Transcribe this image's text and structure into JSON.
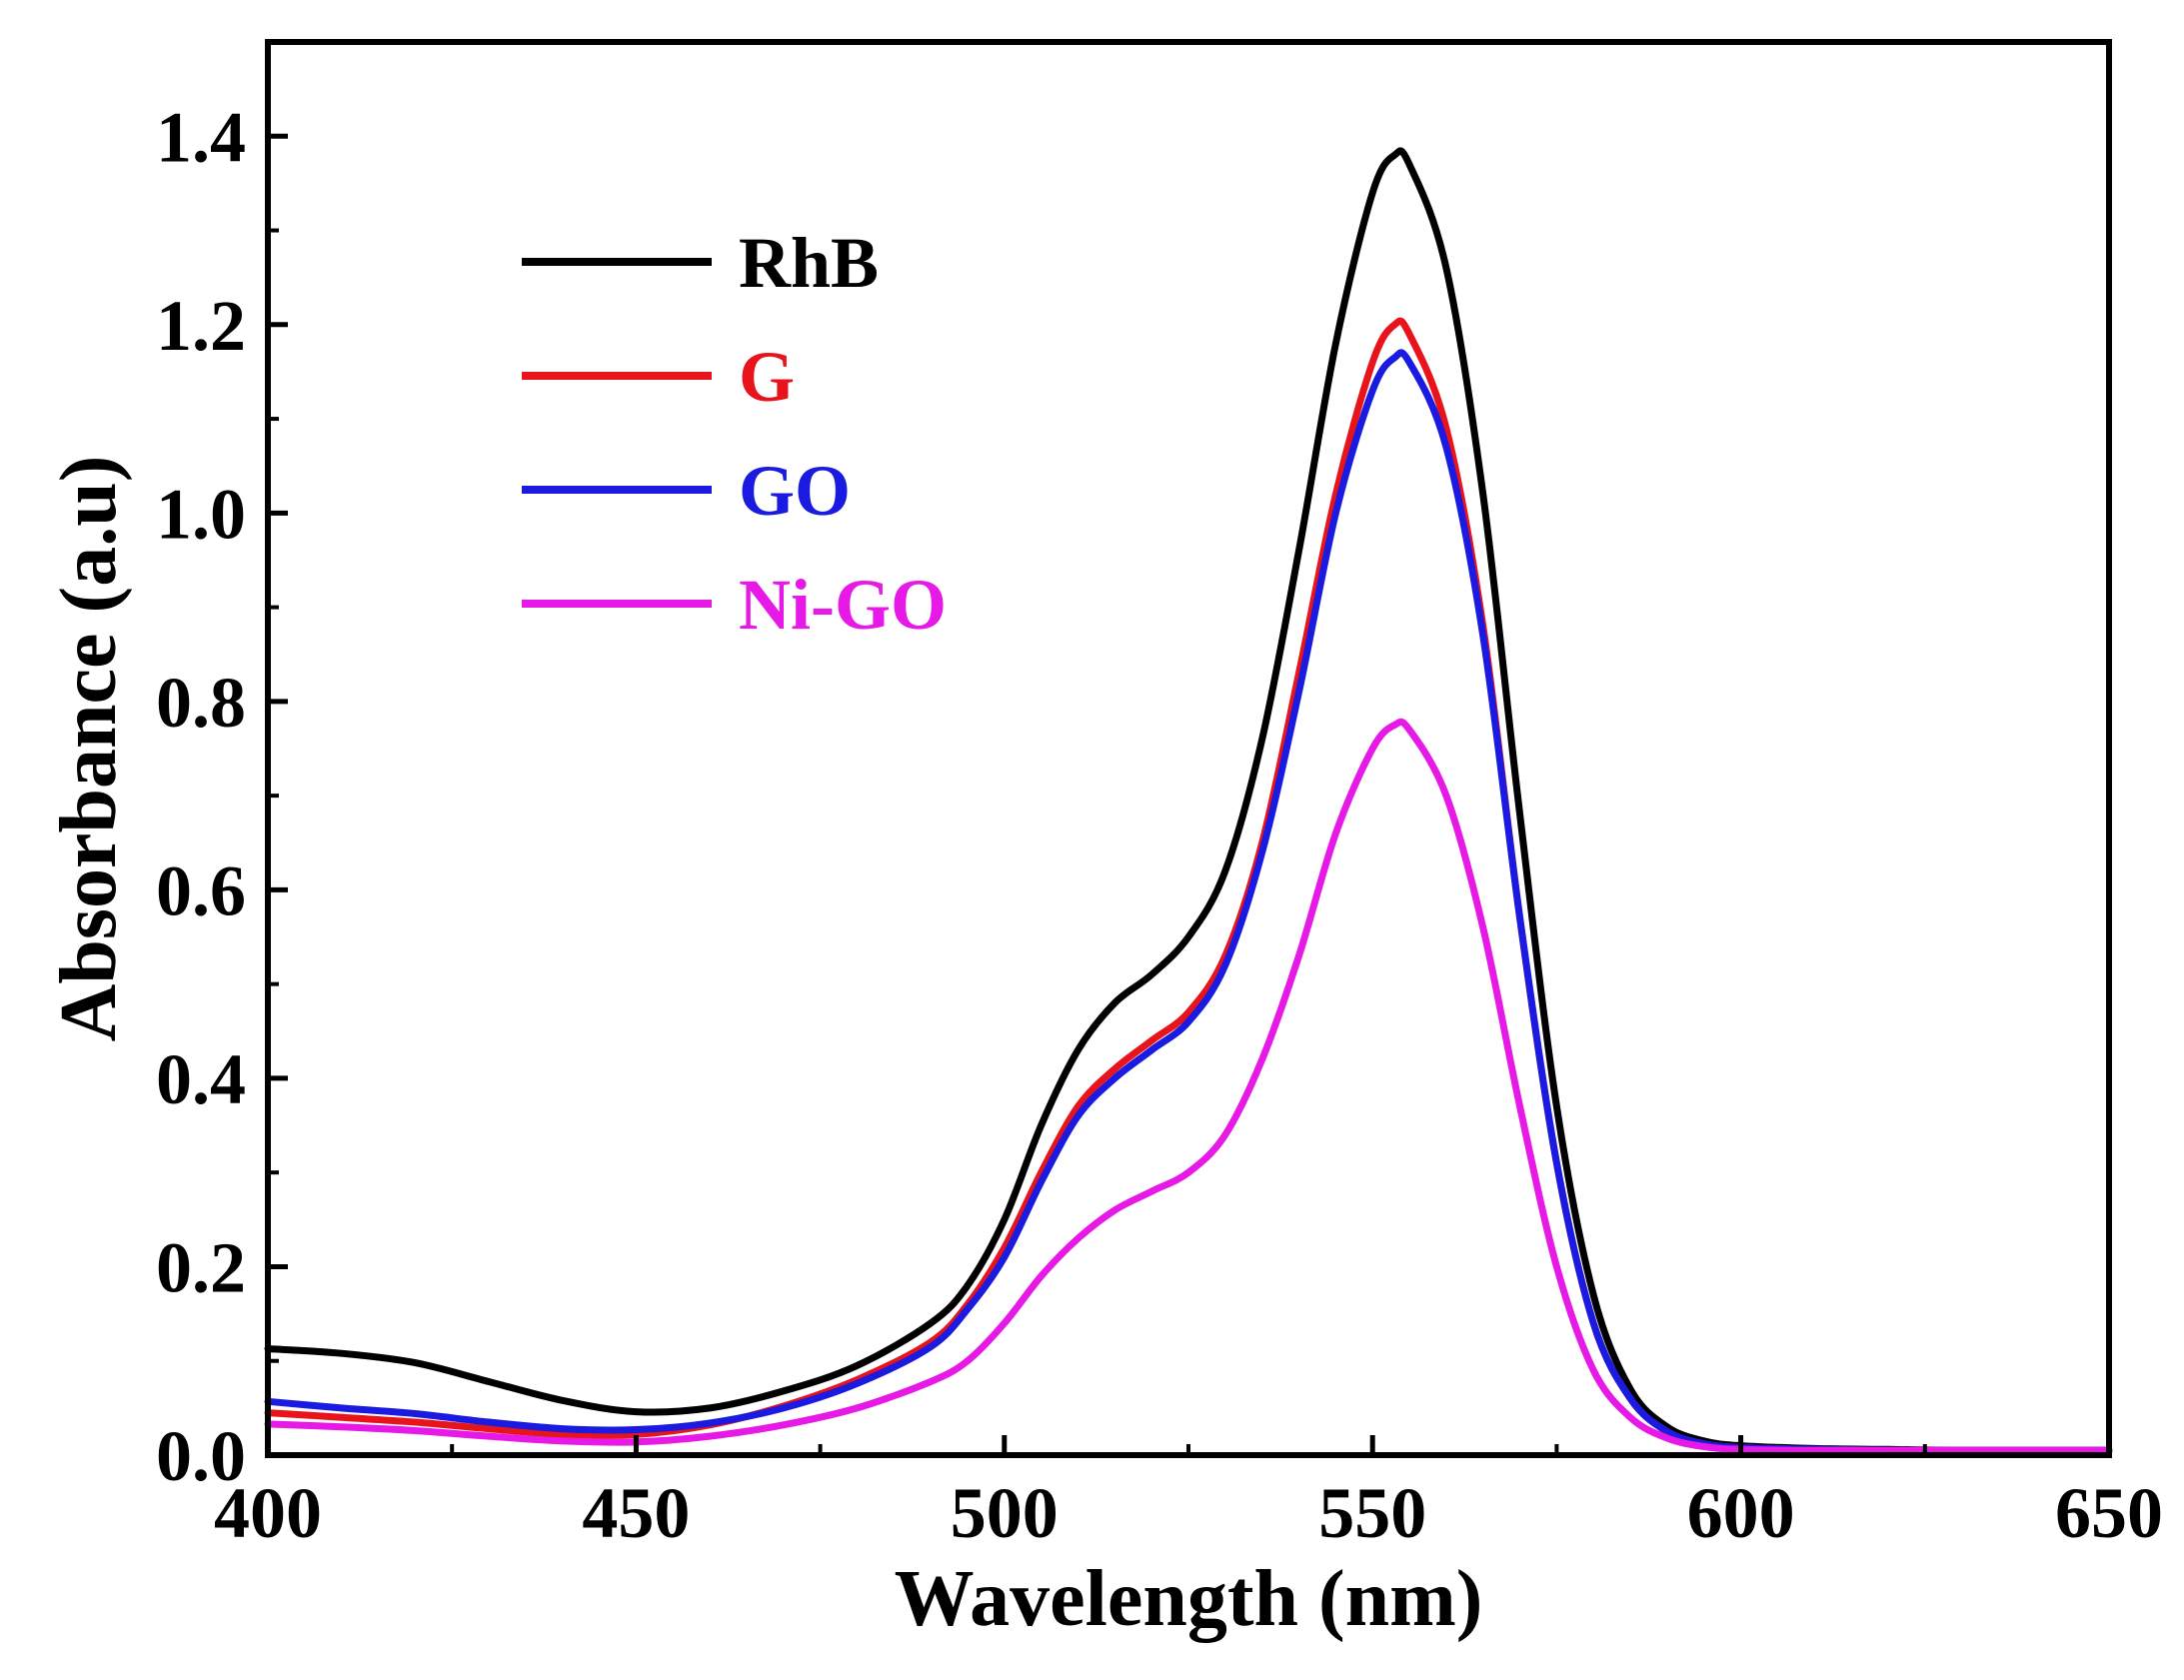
{
  "chart_data": {
    "type": "line",
    "title": "",
    "xlabel": "Wavelength (nm)",
    "ylabel": "Absorbance (a.u)",
    "xlim": [
      400,
      650
    ],
    "ylim": [
      0.0,
      1.5
    ],
    "xticks": [
      400,
      450,
      500,
      550,
      600,
      650
    ],
    "xtick_labels": [
      "400",
      "450",
      "500",
      "550",
      "600",
      "650"
    ],
    "yticks": [
      0.0,
      0.2,
      0.4,
      0.6,
      0.8,
      1.0,
      1.2,
      1.4
    ],
    "ytick_labels": [
      "0.0",
      "0.2",
      "0.4",
      "0.6",
      "0.8",
      "1.0",
      "1.2",
      "1.4"
    ],
    "grid": false,
    "legend_position": "top-left",
    "series": [
      {
        "name": "RhB",
        "color": "#000000",
        "x": [
          400,
          410,
          420,
          430,
          440,
          450,
          460,
          470,
          480,
          490,
          495,
          500,
          505,
          510,
          515,
          520,
          525,
          530,
          535,
          540,
          545,
          550,
          553,
          555,
          560,
          565,
          570,
          575,
          580,
          585,
          590,
          595,
          600,
          610,
          620,
          630,
          640,
          650
        ],
        "values": [
          0.113,
          0.108,
          0.098,
          0.078,
          0.058,
          0.046,
          0.05,
          0.068,
          0.095,
          0.14,
          0.18,
          0.25,
          0.35,
          0.43,
          0.48,
          0.51,
          0.55,
          0.62,
          0.76,
          0.96,
          1.18,
          1.34,
          1.38,
          1.37,
          1.26,
          1.02,
          0.68,
          0.37,
          0.17,
          0.07,
          0.03,
          0.015,
          0.01,
          0.007,
          0.006,
          0.005,
          0.005,
          0.005
        ]
      },
      {
        "name": "G",
        "color": "#e8141b",
        "x": [
          400,
          410,
          420,
          430,
          440,
          450,
          460,
          470,
          480,
          490,
          495,
          500,
          505,
          510,
          515,
          520,
          525,
          530,
          535,
          540,
          545,
          550,
          553,
          555,
          560,
          565,
          570,
          575,
          580,
          585,
          590,
          595,
          600,
          610,
          620,
          630,
          640,
          650
        ],
        "values": [
          0.045,
          0.04,
          0.035,
          0.028,
          0.022,
          0.022,
          0.032,
          0.052,
          0.08,
          0.12,
          0.16,
          0.22,
          0.3,
          0.37,
          0.41,
          0.44,
          0.47,
          0.53,
          0.65,
          0.83,
          1.02,
          1.16,
          1.2,
          1.19,
          1.09,
          0.88,
          0.57,
          0.31,
          0.14,
          0.06,
          0.025,
          0.012,
          0.008,
          0.006,
          0.005,
          0.005,
          0.005,
          0.005
        ]
      },
      {
        "name": "GO",
        "color": "#1a1ae0",
        "x": [
          400,
          410,
          420,
          430,
          440,
          450,
          460,
          470,
          480,
          490,
          495,
          500,
          505,
          510,
          515,
          520,
          525,
          530,
          535,
          540,
          545,
          550,
          553,
          555,
          560,
          565,
          570,
          575,
          580,
          585,
          590,
          595,
          600,
          610,
          620,
          630,
          640,
          650
        ],
        "values": [
          0.057,
          0.05,
          0.044,
          0.035,
          0.028,
          0.027,
          0.034,
          0.05,
          0.076,
          0.115,
          0.155,
          0.21,
          0.29,
          0.36,
          0.4,
          0.43,
          0.46,
          0.52,
          0.64,
          0.81,
          1.0,
          1.13,
          1.165,
          1.16,
          1.07,
          0.87,
          0.57,
          0.31,
          0.14,
          0.06,
          0.025,
          0.012,
          0.008,
          0.006,
          0.005,
          0.005,
          0.005,
          0.005
        ]
      },
      {
        "name": "Ni-GO",
        "color": "#e619e6",
        "x": [
          400,
          410,
          420,
          430,
          440,
          450,
          460,
          470,
          480,
          490,
          495,
          500,
          505,
          510,
          515,
          520,
          525,
          530,
          535,
          540,
          545,
          550,
          553,
          555,
          560,
          565,
          570,
          575,
          580,
          585,
          590,
          595,
          600,
          610,
          620,
          630,
          640,
          650
        ],
        "values": [
          0.033,
          0.03,
          0.026,
          0.02,
          0.015,
          0.014,
          0.02,
          0.032,
          0.05,
          0.078,
          0.1,
          0.14,
          0.19,
          0.23,
          0.26,
          0.28,
          0.3,
          0.34,
          0.42,
          0.53,
          0.66,
          0.75,
          0.775,
          0.77,
          0.7,
          0.56,
          0.37,
          0.2,
          0.09,
          0.04,
          0.018,
          0.009,
          0.006,
          0.005,
          0.005,
          0.005,
          0.005,
          0.005
        ]
      }
    ]
  }
}
